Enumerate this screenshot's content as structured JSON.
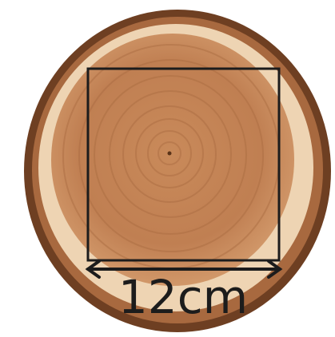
{
  "annotation": {
    "label": "12cm"
  }
}
